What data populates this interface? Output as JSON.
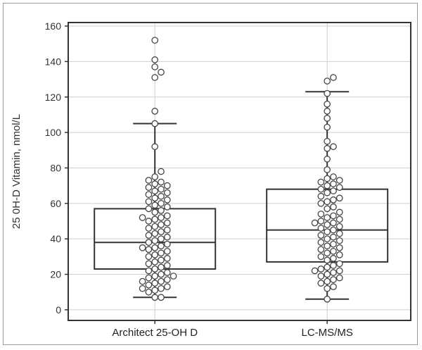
{
  "chart_data": {
    "type": "box",
    "ylabel": "25 0H-D Vitamin, nmol/L",
    "xlabel": "",
    "ylim": [
      -6,
      162
    ],
    "yticks": [
      0,
      20,
      40,
      60,
      80,
      100,
      120,
      140,
      160
    ],
    "categories": [
      "Architect 25-OH D",
      "LC-MS/MS"
    ],
    "grid": true,
    "boxes": [
      {
        "name": "Architect 25-OH D",
        "whisker_low": 7,
        "q1": 23,
        "median": 38,
        "q3": 57,
        "whisker_high": 105,
        "points": [
          7,
          7,
          10,
          11,
          12,
          12,
          13,
          14,
          15,
          16,
          16,
          17,
          18,
          19,
          19,
          20,
          21,
          22,
          23,
          24,
          25,
          26,
          27,
          28,
          29,
          30,
          31,
          32,
          33,
          34,
          35,
          35,
          36,
          37,
          38,
          39,
          40,
          41,
          42,
          43,
          44,
          45,
          46,
          47,
          48,
          49,
          50,
          51,
          52,
          52,
          53,
          55,
          56,
          57,
          58,
          59,
          60,
          61,
          62,
          63,
          64,
          65,
          66,
          67,
          68,
          69,
          70,
          71,
          72,
          73,
          75,
          78,
          92,
          105,
          112,
          131,
          134,
          137,
          141,
          152
        ]
      },
      {
        "name": "LC-MS/MS",
        "whisker_low": 6,
        "q1": 27,
        "median": 45,
        "q3": 68,
        "whisker_high": 123,
        "points": [
          6,
          12,
          13,
          15,
          16,
          17,
          18,
          19,
          20,
          21,
          22,
          22,
          23,
          24,
          25,
          26,
          28,
          29,
          30,
          31,
          32,
          33,
          34,
          35,
          36,
          37,
          38,
          39,
          40,
          41,
          42,
          43,
          44,
          45,
          46,
          47,
          48,
          49,
          49,
          50,
          51,
          52,
          53,
          54,
          55,
          57,
          58,
          60,
          61,
          62,
          63,
          64,
          66,
          67,
          68,
          69,
          70,
          71,
          72,
          73,
          74,
          75,
          79,
          85,
          91,
          92,
          95,
          103,
          108,
          112,
          116,
          122,
          129,
          131
        ]
      }
    ]
  },
  "colors": {
    "box": "#333333",
    "point_fill": "#ffffff",
    "point_stroke": "#444444",
    "grid": "#cfcfcf"
  }
}
